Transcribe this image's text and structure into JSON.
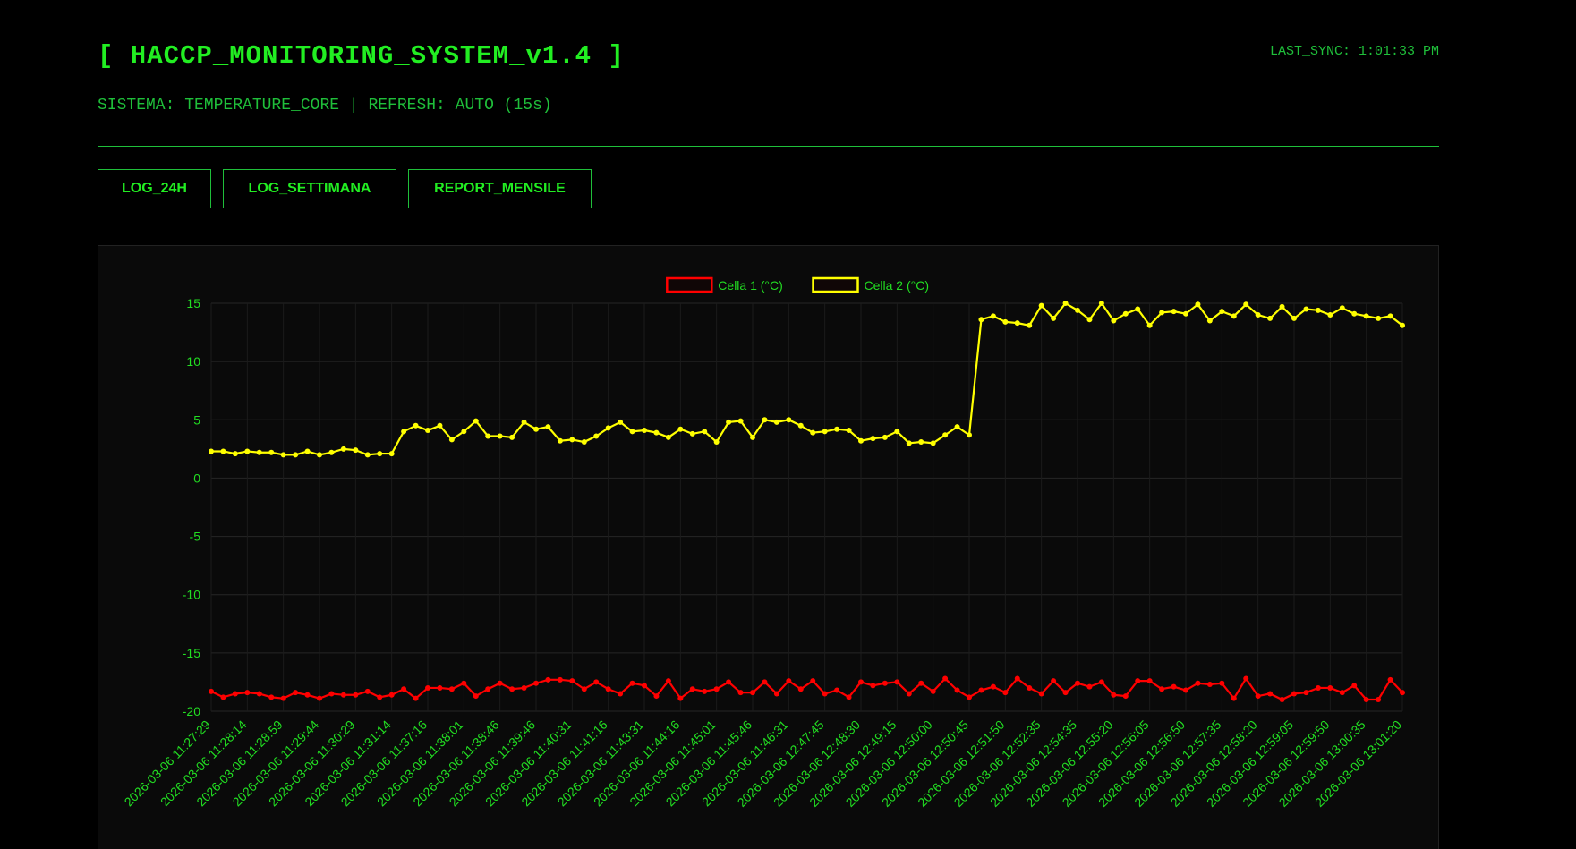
{
  "header": {
    "title": "[ HACCP_MONITORING_SYSTEM_v1.4 ]",
    "subtitle": "SISTEMA: TEMPERATURE_CORE | REFRESH: AUTO (15s)",
    "last_sync": "LAST_SYNC: 1:01:33 PM"
  },
  "buttons": [
    "LOG_24H",
    "LOG_SETTIMANA",
    "REPORT_MENSILE"
  ],
  "chart_data": {
    "type": "line",
    "legend": "top",
    "grid": true,
    "categories": [
      "2026-03-06 11:27:29",
      null,
      null,
      "2026-03-06 11:28:14",
      null,
      null,
      "2026-03-06 11:28:59",
      null,
      null,
      "2026-03-06 11:29:44",
      null,
      null,
      "2026-03-06 11:30:29",
      null,
      null,
      "2026-03-06 11:31:14",
      null,
      null,
      "2026-03-06 11:37:16",
      null,
      null,
      "2026-03-06 11:38:01",
      null,
      null,
      "2026-03-06 11:38:46",
      null,
      null,
      "2026-03-06 11:39:46",
      null,
      null,
      "2026-03-06 11:40:31",
      null,
      null,
      "2026-03-06 11:41:16",
      null,
      null,
      "2026-03-06 11:43:31",
      null,
      null,
      "2026-03-06 11:44:16",
      null,
      null,
      "2026-03-06 11:45:01",
      null,
      null,
      "2026-03-06 11:45:46",
      null,
      null,
      "2026-03-06 11:46:31",
      null,
      null,
      "2026-03-06 12:47:45",
      null,
      null,
      "2026-03-06 12:48:30",
      null,
      null,
      "2026-03-06 12:49:15",
      null,
      null,
      "2026-03-06 12:50:00",
      null,
      null,
      "2026-03-06 12:50:45",
      null,
      null,
      "2026-03-06 12:51:50",
      null,
      null,
      "2026-03-06 12:52:35",
      null,
      null,
      "2026-03-06 12:54:35",
      null,
      null,
      "2026-03-06 12:55:20",
      null,
      null,
      "2026-03-06 12:56:05",
      null,
      null,
      "2026-03-06 12:56:50",
      null,
      null,
      "2026-03-06 12:57:35",
      null,
      null,
      "2026-03-06 12:58:20",
      null,
      null,
      "2026-03-06 12:59:05",
      null,
      null,
      "2026-03-06 12:59:50",
      null,
      null,
      "2026-03-06 13:00:35",
      null,
      null,
      "2026-03-06 13:01:20"
    ],
    "series": [
      {
        "name": "Cella 1 (°C)",
        "color": "#ff0000",
        "values": [
          -18.3,
          -18.8,
          -18.5,
          -18.4,
          -18.5,
          -18.8,
          -18.9,
          -18.4,
          -18.6,
          -18.9,
          -18.5,
          -18.6,
          -18.6,
          -18.3,
          -18.8,
          -18.6,
          -18.1,
          -18.9,
          -18.0,
          -18.0,
          -18.1,
          -17.6,
          -18.7,
          -18.1,
          -17.6,
          -18.1,
          -18.0,
          -17.6,
          -17.3,
          -17.3,
          -17.4,
          -18.1,
          -17.5,
          -18.1,
          -18.5,
          -17.6,
          -17.8,
          -18.7,
          -17.4,
          -18.9,
          -18.1,
          -18.3,
          -18.1,
          -17.5,
          -18.4,
          -18.4,
          -17.5,
          -18.5,
          -17.4,
          -18.1,
          -17.4,
          -18.5,
          -18.2,
          -18.8,
          -17.5,
          -17.8,
          -17.6,
          -17.5,
          -18.5,
          -17.6,
          -18.3,
          -17.2,
          -18.2,
          -18.8,
          -18.2,
          -17.9,
          -18.4,
          -17.2,
          -18.0,
          -18.5,
          -17.4,
          -18.4,
          -17.6,
          -17.9,
          -17.5,
          -18.6,
          -18.7,
          -17.4,
          -17.4,
          -18.1,
          -17.9,
          -18.2,
          -17.6,
          -17.7,
          -17.6,
          -18.9,
          -17.2,
          -18.7,
          -18.5,
          -19.0,
          -18.5,
          -18.4,
          -18.0,
          -18.0,
          -18.4,
          -17.8,
          -19.0,
          -19.0,
          -17.3,
          -18.4
        ]
      },
      {
        "name": "Cella 2 (°C)",
        "color": "#ffff00",
        "values": [
          2.3,
          2.3,
          2.1,
          2.3,
          2.2,
          2.2,
          2.0,
          2.0,
          2.3,
          2.0,
          2.2,
          2.5,
          2.4,
          2.0,
          2.1,
          2.1,
          4.0,
          4.5,
          4.1,
          4.5,
          3.3,
          4.0,
          4.9,
          3.6,
          3.6,
          3.5,
          4.8,
          4.2,
          4.4,
          3.2,
          3.3,
          3.1,
          3.6,
          4.3,
          4.8,
          4.0,
          4.1,
          3.9,
          3.5,
          4.2,
          3.8,
          4.0,
          3.1,
          4.8,
          4.9,
          3.5,
          5.0,
          4.8,
          5.0,
          4.5,
          3.9,
          4.0,
          4.2,
          4.1,
          3.2,
          3.4,
          3.5,
          4.0,
          3.0,
          3.1,
          3.0,
          3.7,
          4.4,
          3.7,
          13.6,
          13.9,
          13.4,
          13.3,
          13.1,
          14.8,
          13.7,
          15.0,
          14.4,
          13.6,
          15.0,
          13.5,
          14.1,
          14.5,
          13.1,
          14.2,
          14.3,
          14.1,
          14.9,
          13.5,
          14.3,
          13.9,
          14.9,
          14.0,
          13.7,
          14.7,
          13.7,
          14.5,
          14.4,
          14.0,
          14.6,
          14.1,
          13.9,
          13.7,
          13.9,
          13.1
        ]
      }
    ],
    "ylim": [
      -20,
      15
    ],
    "yticks": [
      -20,
      -15,
      -10,
      -5,
      0,
      5,
      10,
      15
    ]
  }
}
